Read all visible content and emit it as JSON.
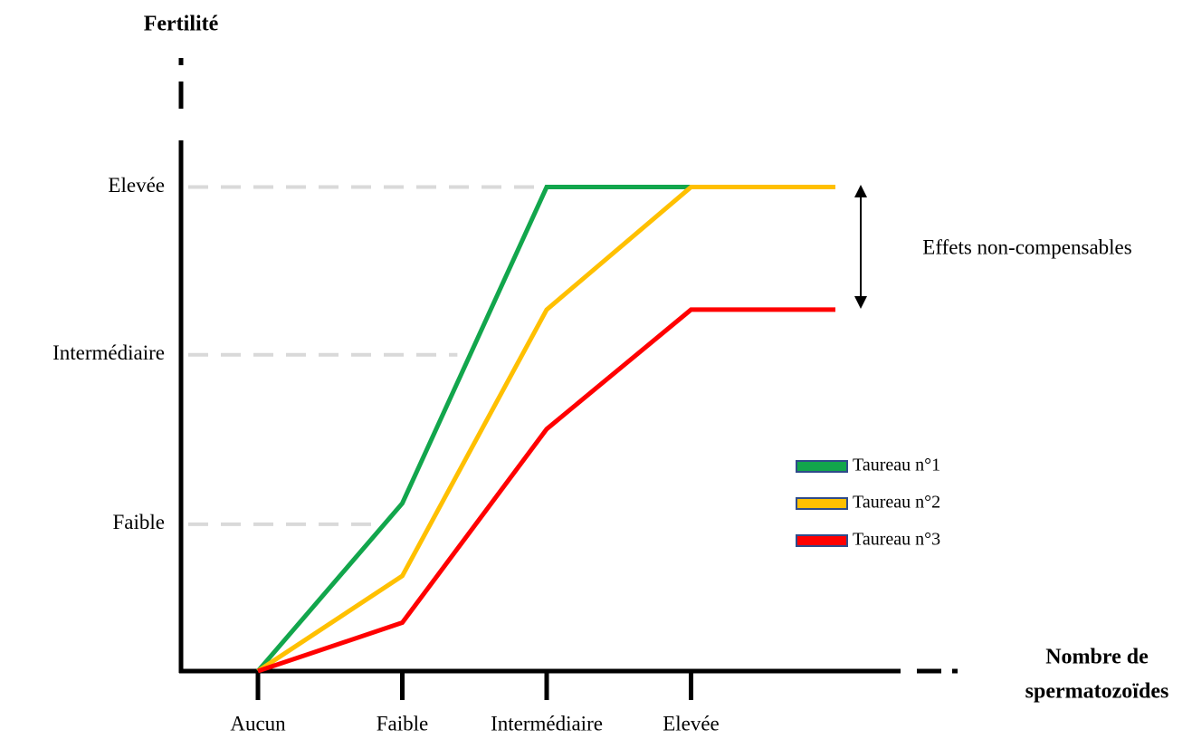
{
  "chart_data": {
    "type": "line",
    "y_label": "Fertilité",
    "x_label": [
      "Nombre de",
      "spermatozoïdes"
    ],
    "categories": [
      "Aucun",
      "Faible",
      "Intermédiaire",
      "Elevée",
      null
    ],
    "series": [
      {
        "name": "Taureau n°1",
        "color": "#12a64c",
        "values": [
          0,
          1.04,
          3,
          3,
          3
        ]
      },
      {
        "name": "Taureau n°2",
        "color": "#ffc000",
        "values": [
          0,
          0.59,
          2.24,
          3,
          3
        ]
      },
      {
        "name": "Taureau n°3",
        "color": "#ff0000",
        "values": [
          0,
          0.3,
          1.5,
          2.24,
          2.24
        ]
      }
    ],
    "ylim": [
      0,
      3.8
    ],
    "yticks": [
      {
        "value": 0.91,
        "label": "Faible"
      },
      {
        "value": 1.96,
        "label": "Intermédiaire"
      },
      {
        "value": 3,
        "label": "Elevée"
      }
    ],
    "grid": true,
    "annotation": "Effets non-compensables",
    "legend": "right"
  }
}
